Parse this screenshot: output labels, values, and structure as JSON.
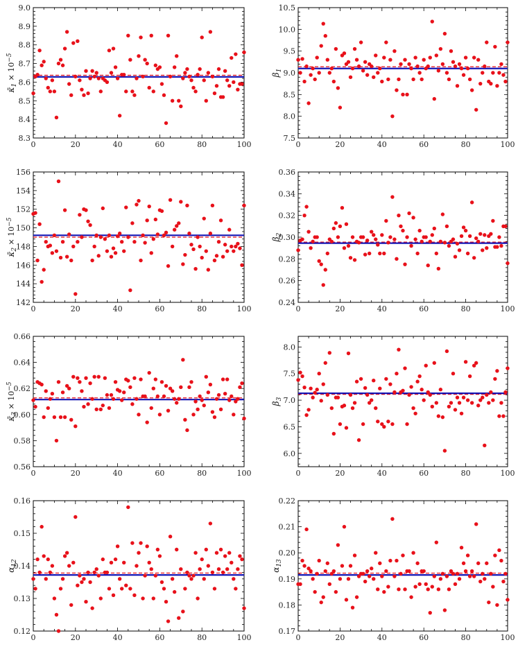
{
  "colors": {
    "points": "#e8111a",
    "estimate": "#1414b4",
    "reference": "#e8111a",
    "frame": "#000000"
  },
  "chart_data": [
    {
      "type": "scatter",
      "ylabel_parts": [
        "κ̄",
        "1",
        " × 10",
        "−5"
      ],
      "xlim": [
        0,
        100
      ],
      "ylim": [
        8.3,
        9.0
      ],
      "xticks": [
        "0",
        "20",
        "40",
        "60",
        "80",
        "100"
      ],
      "yticks": [
        "8.3",
        "8.4",
        "8.5",
        "8.6",
        "8.7",
        "8.8",
        "8.9",
        "9.0"
      ],
      "estimate_line": 8.628,
      "reference_line": 8.637,
      "grid": false,
      "y": [
        8.54,
        8.63,
        8.64,
        8.77,
        8.69,
        8.71,
        8.62,
        8.57,
        8.55,
        8.61,
        8.55,
        8.41,
        8.7,
        8.72,
        8.69,
        8.78,
        8.87,
        8.59,
        8.53,
        8.81,
        8.63,
        8.82,
        8.61,
        8.56,
        8.53,
        8.66,
        8.54,
        8.62,
        8.66,
        8.63,
        8.65,
        8.62,
        8.55,
        8.62,
        8.61,
        8.6,
        8.77,
        8.65,
        8.78,
        8.68,
        8.62,
        8.42,
        8.64,
        8.64,
        8.55,
        8.85,
        8.72,
        8.55,
        8.53,
        8.62,
        8.74,
        8.84,
        8.63,
        8.72,
        8.7,
        8.57,
        8.85,
        8.55,
        8.69,
        8.67,
        8.68,
        8.59,
        8.53,
        8.38,
        8.85,
        8.63,
        8.5,
        8.68,
        8.74,
        8.5,
        8.47,
        8.62,
        8.65,
        8.67,
        8.63,
        8.61,
        8.57,
        8.55,
        8.64,
        8.67,
        8.84,
        8.61,
        8.5,
        8.65,
        8.87,
        8.63,
        8.54,
        8.58,
        8.67,
        8.52,
        8.52,
        8.66,
        8.61,
        8.58,
        8.73,
        8.6,
        8.75,
        8.56,
        8.59,
        8.59,
        8.76
      ]
    },
    {
      "type": "scatter",
      "ylabel_parts": [
        "β",
        "1",
        "",
        ""
      ],
      "xlim": [
        0,
        100
      ],
      "ylim": [
        7.5,
        10.5
      ],
      "xticks": [
        "0",
        "20",
        "40",
        "60",
        "80",
        "100"
      ],
      "yticks": [
        "7.5",
        "8.0",
        "8.5",
        "9.0",
        "9.5",
        "10.0",
        "10.5"
      ],
      "estimate_line": 9.1,
      "reference_line": 9.14,
      "grid": false,
      "y": [
        9.3,
        9.0,
        9.32,
        8.8,
        9.15,
        8.3,
        8.95,
        9.1,
        8.85,
        9.35,
        9.0,
        9.62,
        10.13,
        9.85,
        9.3,
        9.0,
        9.1,
        8.8,
        9.55,
        8.65,
        8.2,
        9.4,
        9.45,
        9.2,
        9.25,
        8.9,
        9.1,
        9.55,
        9.3,
        9.15,
        9.7,
        9.05,
        9.25,
        8.95,
        9.2,
        9.15,
        8.9,
        9.4,
        9.0,
        9.1,
        8.8,
        9.35,
        9.7,
        8.85,
        9.3,
        8.0,
        9.5,
        8.6,
        8.85,
        9.2,
        8.5,
        9.3,
        8.5,
        9.2,
        9.1,
        8.85,
        9.35,
        9.15,
        9.0,
        8.85,
        9.3,
        9.1,
        9.15,
        9.35,
        10.18,
        8.4,
        9.4,
        9.05,
        9.55,
        9.2,
        9.9,
        9.0,
        8.85,
        9.5,
        9.25,
        9.15,
        8.7,
        9.2,
        9.1,
        8.95,
        9.35,
        9.1,
        8.85,
        8.6,
        9.35,
        8.15,
        9.3,
        8.75,
        9.0,
        9.15,
        9.7,
        8.8,
        8.75,
        9.0,
        9.6,
        8.7,
        9.0,
        9.2,
        8.95,
        8.8,
        9.7
      ]
    },
    {
      "type": "scatter",
      "ylabel_parts": [
        "κ̄",
        "2",
        " × 10",
        "−5"
      ],
      "xlim": [
        0,
        100
      ],
      "ylim": [
        142,
        156
      ],
      "xticks": [
        "0",
        "20",
        "40",
        "60",
        "80",
        "100"
      ],
      "yticks": [
        "142",
        "144",
        "146",
        "148",
        "150",
        "152",
        "154",
        "156"
      ],
      "estimate_line": 149.2,
      "reference_line": 149.0,
      "grid": false,
      "y": [
        151.5,
        151.6,
        146.5,
        150.4,
        144.2,
        145.5,
        148.5,
        148.0,
        148.1,
        147.3,
        149.2,
        147.5,
        155.0,
        146.8,
        148.5,
        151.9,
        146.9,
        149.3,
        146.5,
        148.0,
        142.9,
        148.5,
        151.4,
        149.0,
        152.0,
        151.9,
        150.7,
        150.3,
        146.5,
        148.0,
        149.2,
        147.0,
        149.0,
        152.1,
        148.8,
        147.5,
        149.2,
        146.9,
        147.8,
        147.3,
        149.1,
        149.4,
        148.5,
        147.5,
        152.2,
        149.0,
        143.3,
        150.5,
        148.5,
        152.5,
        152.9,
        146.5,
        149.2,
        148.4,
        150.8,
        152.3,
        147.3,
        148.8,
        150.9,
        149.3,
        151.9,
        151.8,
        149.2,
        149.5,
        145.9,
        153.0,
        148.0,
        149.8,
        150.2,
        150.5,
        152.8,
        146.1,
        147.1,
        152.4,
        149.4,
        148.2,
        147.7,
        145.6,
        149.0,
        148.0,
        146.8,
        151.0,
        147.5,
        145.5,
        149.4,
        152.4,
        146.5,
        147.0,
        148.5,
        150.8,
        146.9,
        148.2,
        147.5,
        149.8,
        148.0,
        147.5,
        148.0,
        148.3,
        147.8,
        146.0,
        152.4
      ]
    },
    {
      "type": "scatter",
      "ylabel_parts": [
        "β",
        "2",
        "",
        ""
      ],
      "xlim": [
        0,
        100
      ],
      "ylim": [
        0.24,
        0.36
      ],
      "xticks": [
        "0",
        "20",
        "40",
        "60",
        "80",
        "100"
      ],
      "yticks": [
        "0.24",
        "0.26",
        "0.28",
        "0.30",
        "0.32",
        "0.34",
        "0.36"
      ],
      "estimate_line": 0.2945,
      "reference_line": 0.2955,
      "grid": false,
      "y": [
        0.288,
        0.297,
        0.298,
        0.32,
        0.328,
        0.305,
        0.29,
        0.296,
        0.3,
        0.3,
        0.278,
        0.275,
        0.256,
        0.27,
        0.285,
        0.298,
        0.296,
        0.308,
        0.313,
        0.3,
        0.31,
        0.327,
        0.29,
        0.312,
        0.292,
        0.281,
        0.3,
        0.279,
        0.296,
        0.295,
        0.3,
        0.3,
        0.284,
        0.297,
        0.285,
        0.305,
        0.302,
        0.298,
        0.293,
        0.285,
        0.302,
        0.285,
        0.315,
        0.295,
        0.3,
        0.337,
        0.298,
        0.28,
        0.32,
        0.31,
        0.306,
        0.275,
        0.3,
        0.322,
        0.292,
        0.318,
        0.298,
        0.285,
        0.306,
        0.296,
        0.3,
        0.3,
        0.274,
        0.296,
        0.302,
        0.308,
        0.285,
        0.271,
        0.296,
        0.321,
        0.295,
        0.31,
        0.292,
        0.296,
        0.298,
        0.282,
        0.294,
        0.288,
        0.301,
        0.309,
        0.306,
        0.285,
        0.301,
        0.332,
        0.281,
        0.299,
        0.296,
        0.303,
        0.288,
        0.302,
        0.29,
        0.301,
        0.303,
        0.315,
        0.291,
        0.291,
        0.3,
        0.292,
        0.31,
        0.31,
        0.276
      ]
    },
    {
      "type": "scatter",
      "ylabel_parts": [
        "κ̄",
        "3",
        " × 10",
        "−5"
      ],
      "xlim": [
        0,
        100
      ],
      "ylim": [
        0.56,
        0.66
      ],
      "xticks": [
        "0",
        "20",
        "40",
        "60",
        "80",
        "100"
      ],
      "yticks": [
        "0.56",
        "0.58",
        "0.60",
        "0.62",
        "0.64",
        "0.66"
      ],
      "estimate_line": 0.6115,
      "reference_line": 0.6128,
      "grid": false,
      "y": [
        0.611,
        0.606,
        0.625,
        0.624,
        0.623,
        0.598,
        0.618,
        0.605,
        0.612,
        0.616,
        0.598,
        0.58,
        0.625,
        0.598,
        0.617,
        0.598,
        0.622,
        0.62,
        0.596,
        0.629,
        0.591,
        0.628,
        0.625,
        0.618,
        0.606,
        0.628,
        0.608,
        0.624,
        0.612,
        0.629,
        0.604,
        0.629,
        0.604,
        0.607,
        0.628,
        0.615,
        0.605,
        0.615,
        0.612,
        0.625,
        0.619,
        0.618,
        0.611,
        0.617,
        0.627,
        0.626,
        0.621,
        0.608,
        0.628,
        0.612,
        0.6,
        0.627,
        0.614,
        0.614,
        0.594,
        0.632,
        0.605,
        0.62,
        0.627,
        0.614,
        0.6,
        0.625,
        0.614,
        0.622,
        0.603,
        0.62,
        0.618,
        0.612,
        0.609,
        0.612,
        0.621,
        0.642,
        0.596,
        0.588,
        0.621,
        0.625,
        0.6,
        0.61,
        0.604,
        0.614,
        0.611,
        0.607,
        0.629,
        0.617,
        0.623,
        0.602,
        0.598,
        0.612,
        0.615,
        0.604,
        0.627,
        0.616,
        0.627,
        0.611,
        0.614,
        0.6,
        0.61,
        0.612,
        0.621,
        0.624,
        0.597
      ]
    },
    {
      "type": "scatter",
      "ylabel_parts": [
        "β",
        "3",
        "",
        ""
      ],
      "xlim": [
        0,
        100
      ],
      "ylim": [
        5.75,
        8.2
      ],
      "xticks": [
        "0",
        "20",
        "40",
        "60",
        "80",
        "100"
      ],
      "yticks": [
        "6.0",
        "6.5",
        "7.0",
        "7.5",
        "8.0"
      ],
      "estimate_line": 7.13,
      "reference_line": 7.11,
      "grid": false,
      "y": [
        7.38,
        7.52,
        7.45,
        7.24,
        6.72,
        6.82,
        7.22,
        7.05,
        7.14,
        7.2,
        7.5,
        6.99,
        7.3,
        7.7,
        7.1,
        7.89,
        6.85,
        6.37,
        7.05,
        7.05,
        6.55,
        6.88,
        6.9,
        6.48,
        7.88,
        7.1,
        6.85,
        6.95,
        7.35,
        6.25,
        7.4,
        6.55,
        7.23,
        7.1,
        6.95,
        7.0,
        7.37,
        6.85,
        6.6,
        7.22,
        6.55,
        6.5,
        7.4,
        6.6,
        7.3,
        6.55,
        7.15,
        7.5,
        7.95,
        7.15,
        7.18,
        7.6,
        6.55,
        7.1,
        7.25,
        6.85,
        6.75,
        7.35,
        7.45,
        7.2,
        7.0,
        7.65,
        7.15,
        7.1,
        6.88,
        7.7,
        6.95,
        6.7,
        7.2,
        6.68,
        6.05,
        7.92,
        6.88,
        6.95,
        7.5,
        6.82,
        7.05,
        6.95,
        6.75,
        7.05,
        7.72,
        7.0,
        7.45,
        6.95,
        7.65,
        7.7,
        6.9,
        7.0,
        7.05,
        6.15,
        7.1,
        6.95,
        7.15,
        7.0,
        7.4,
        7.55,
        6.7,
        6.95,
        6.7,
        7.15,
        7.6
      ]
    },
    {
      "type": "scatter",
      "ylabel_parts": [
        "α",
        "12",
        "",
        ""
      ],
      "xlim": [
        0,
        100
      ],
      "ylim": [
        0.12,
        0.16
      ],
      "xticks": [
        "0",
        "20",
        "40",
        "60",
        "80",
        "100"
      ],
      "yticks": [
        "0.12",
        "0.13",
        "0.14",
        "0.15",
        "0.16"
      ],
      "estimate_line": 0.1372,
      "reference_line": 0.1378,
      "grid": false,
      "y": [
        0.136,
        0.133,
        0.142,
        0.138,
        0.152,
        0.143,
        0.136,
        0.142,
        0.138,
        0.14,
        0.13,
        0.125,
        0.12,
        0.133,
        0.136,
        0.143,
        0.144,
        0.14,
        0.128,
        0.141,
        0.155,
        0.134,
        0.137,
        0.135,
        0.136,
        0.129,
        0.138,
        0.135,
        0.127,
        0.138,
        0.139,
        0.137,
        0.13,
        0.142,
        0.138,
        0.138,
        0.133,
        0.141,
        0.131,
        0.142,
        0.146,
        0.136,
        0.133,
        0.141,
        0.134,
        0.158,
        0.133,
        0.147,
        0.131,
        0.14,
        0.144,
        0.147,
        0.13,
        0.137,
        0.146,
        0.141,
        0.139,
        0.13,
        0.137,
        0.145,
        0.143,
        0.135,
        0.133,
        0.129,
        0.123,
        0.149,
        0.136,
        0.132,
        0.145,
        0.124,
        0.139,
        0.126,
        0.133,
        0.138,
        0.137,
        0.136,
        0.137,
        0.144,
        0.13,
        0.139,
        0.142,
        0.136,
        0.145,
        0.14,
        0.153,
        0.138,
        0.133,
        0.144,
        0.139,
        0.145,
        0.138,
        0.143,
        0.139,
        0.144,
        0.141,
        0.136,
        0.133,
        0.139,
        0.143,
        0.142,
        0.127
      ]
    },
    {
      "type": "scatter",
      "ylabel_parts": [
        "α",
        "13",
        "",
        ""
      ],
      "xlim": [
        0,
        100
      ],
      "ylim": [
        0.17,
        0.22
      ],
      "xticks": [
        "0",
        "20",
        "40",
        "60",
        "80",
        "100"
      ],
      "yticks": [
        "0.17",
        "0.18",
        "0.19",
        "0.20",
        "0.21",
        "0.22"
      ],
      "estimate_line": 0.1915,
      "reference_line": 0.1922,
      "grid": false,
      "y": [
        0.188,
        0.188,
        0.197,
        0.195,
        0.209,
        0.194,
        0.193,
        0.19,
        0.185,
        0.192,
        0.197,
        0.181,
        0.183,
        0.193,
        0.196,
        0.188,
        0.192,
        0.193,
        0.185,
        0.203,
        0.19,
        0.195,
        0.21,
        0.182,
        0.19,
        0.195,
        0.179,
        0.199,
        0.183,
        0.191,
        0.192,
        0.192,
        0.189,
        0.193,
        0.191,
        0.194,
        0.19,
        0.2,
        0.186,
        0.196,
        0.191,
        0.185,
        0.193,
        0.187,
        0.197,
        0.213,
        0.191,
        0.197,
        0.186,
        0.192,
        0.199,
        0.186,
        0.193,
        0.193,
        0.183,
        0.2,
        0.187,
        0.196,
        0.188,
        0.193,
        0.193,
        0.188,
        0.186,
        0.177,
        0.187,
        0.191,
        0.204,
        0.186,
        0.19,
        0.192,
        0.178,
        0.191,
        0.186,
        0.193,
        0.192,
        0.188,
        0.192,
        0.19,
        0.202,
        0.196,
        0.193,
        0.199,
        0.191,
        0.193,
        0.191,
        0.211,
        0.196,
        0.189,
        0.192,
        0.19,
        0.196,
        0.181,
        0.192,
        0.187,
        0.199,
        0.18,
        0.201,
        0.197,
        0.189,
        0.192,
        0.182
      ]
    }
  ]
}
